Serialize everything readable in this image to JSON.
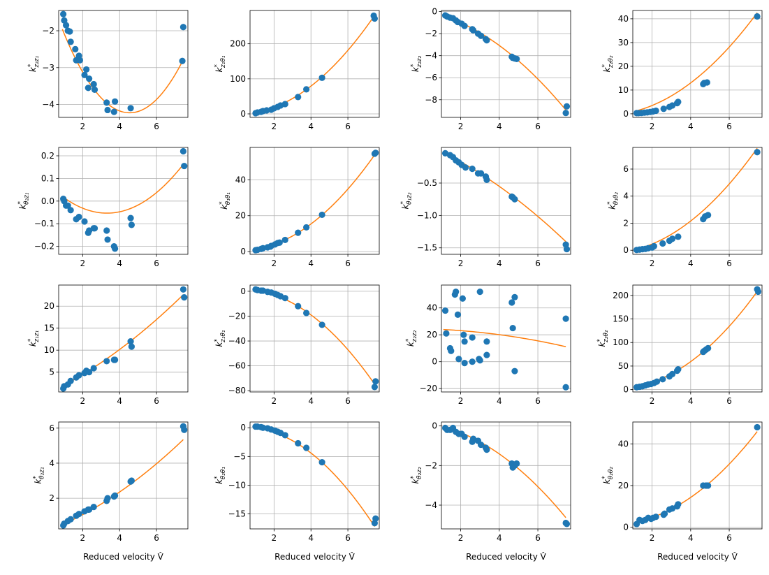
{
  "colors": {
    "points": "#1f77b4",
    "fit_line": "#ff7f0e",
    "grid": "#b0b0b0",
    "axes": "#000000"
  },
  "chart_data": [
    {
      "type": "scatter",
      "ylabel": {
        "base": "k",
        "sup": "*",
        "sub": "z₂z₁"
      },
      "xlabel": "",
      "xlim": [
        0.7,
        7.7
      ],
      "ylim": [
        -4.35,
        -1.45
      ],
      "xticks": [
        2,
        4,
        6
      ],
      "yticks": [
        -4,
        -3,
        -2
      ],
      "ytick_labels": [
        "−4",
        "−3",
        "−2"
      ],
      "grid": true,
      "x": [
        0.95,
        1.0,
        1.1,
        1.2,
        1.3,
        1.35,
        1.6,
        1.65,
        1.8,
        1.85,
        2.1,
        2.2,
        2.3,
        2.35,
        2.6,
        2.65,
        3.3,
        3.35,
        3.7,
        3.75,
        4.6,
        7.4,
        7.45
      ],
      "y": [
        -1.55,
        -1.72,
        -1.85,
        -2.0,
        -2.02,
        -2.3,
        -2.5,
        -2.8,
        -2.68,
        -2.8,
        -3.2,
        -3.05,
        -3.55,
        -3.3,
        -3.45,
        -3.6,
        -3.95,
        -4.15,
        -4.2,
        -3.92,
        -4.1,
        -2.82,
        -1.9
      ],
      "fit": {
        "coeffs": [
          0.1707,
          -1.5516,
          -0.6999
        ],
        "xrange": [
          0.9,
          7.45
        ]
      }
    },
    {
      "type": "scatter",
      "ylabel": {
        "base": "k",
        "sup": "*",
        "sub": "z₁θ₁"
      },
      "xlabel": "",
      "xlim": [
        0.7,
        7.7
      ],
      "ylim": [
        -10,
        295
      ],
      "xticks": [
        2,
        4,
        6
      ],
      "yticks": [
        0,
        100,
        200
      ],
      "ytick_labels": [
        "0",
        "100",
        "200"
      ],
      "grid": true,
      "x": [
        1.0,
        1.1,
        1.3,
        1.4,
        1.6,
        1.85,
        2.0,
        2.2,
        2.35,
        2.6,
        3.3,
        3.75,
        4.6,
        7.4,
        7.45
      ],
      "y": [
        2,
        4,
        6,
        8,
        10,
        12,
        16,
        20,
        24,
        28,
        48,
        70,
        103,
        280,
        272
      ],
      "fit": {
        "coeffs": [
          5.2,
          -1,
          0
        ],
        "xrange": [
          0.9,
          7.45
        ]
      }
    },
    {
      "type": "scatter",
      "ylabel": {
        "base": "k",
        "sup": "*",
        "sub": "z₂z₂"
      },
      "xlabel": "",
      "xlim": [
        1.0,
        7.7
      ],
      "ylim": [
        -9.6,
        0.1
      ],
      "xticks": [
        2,
        4,
        6
      ],
      "yticks": [
        0,
        -2,
        -4,
        -6,
        -8
      ],
      "ytick_labels": [
        "0",
        "−2",
        "−4",
        "−6",
        "−8"
      ],
      "grid": true,
      "x": [
        1.2,
        1.3,
        1.45,
        1.6,
        1.75,
        1.85,
        2.05,
        2.2,
        2.6,
        2.65,
        2.9,
        3.05,
        3.3,
        3.35,
        4.65,
        4.7,
        4.8,
        4.9,
        7.45,
        7.5
      ],
      "y": [
        -0.35,
        -0.45,
        -0.55,
        -0.6,
        -0.8,
        -0.95,
        -1.1,
        -1.3,
        -1.6,
        -1.7,
        -2.0,
        -2.2,
        -2.5,
        -2.6,
        -4.1,
        -4.2,
        -4.25,
        -4.3,
        -9.2,
        -8.6
      ],
      "fit": {
        "coeffs": [
          -0.1212,
          -0.3091,
          0.1
        ],
        "xrange": [
          1.1,
          7.45
        ]
      }
    },
    {
      "type": "scatter",
      "ylabel": {
        "base": "k",
        "sup": "*",
        "sub": "z₂θ₂"
      },
      "xlabel": "",
      "xlim": [
        1.0,
        7.7
      ],
      "ylim": [
        -1.5,
        43.5
      ],
      "xticks": [
        2,
        4,
        6
      ],
      "yticks": [
        0,
        10,
        20,
        30,
        40
      ],
      "ytick_labels": [
        "0",
        "10",
        "20",
        "30",
        "40"
      ],
      "grid": true,
      "x": [
        1.2,
        1.3,
        1.45,
        1.6,
        1.75,
        1.9,
        2.05,
        2.2,
        2.6,
        2.9,
        3.05,
        3.3,
        3.35,
        4.65,
        4.7,
        4.85,
        7.45
      ],
      "y": [
        0.3,
        0.3,
        0.35,
        0.5,
        0.6,
        0.8,
        1.0,
        1.3,
        2.1,
        2.9,
        3.5,
        4.5,
        5.0,
        12.5,
        13.0,
        13.2,
        41
      ],
      "fit": {
        "coeffs": [
          0.7,
          0.55,
          -0.4
        ],
        "xrange": [
          1.1,
          7.45
        ]
      }
    },
    {
      "type": "scatter",
      "ylabel": {
        "base": "k",
        "sup": "*",
        "sub": "θ₂z₁"
      },
      "xlabel": "",
      "xlim": [
        0.7,
        7.7
      ],
      "ylim": [
        -0.235,
        0.237
      ],
      "xticks": [
        2,
        4,
        6
      ],
      "yticks": [
        -0.2,
        -0.1,
        0.0,
        0.1,
        0.2
      ],
      "ytick_labels": [
        "−0.2",
        "−0.1",
        "0.0",
        "0.1",
        "0.2"
      ],
      "grid": true,
      "x": [
        0.95,
        1.0,
        1.1,
        1.2,
        1.35,
        1.65,
        1.8,
        2.1,
        2.3,
        2.35,
        2.6,
        2.65,
        3.3,
        3.35,
        3.7,
        3.75,
        4.6,
        4.65,
        7.45,
        7.5
      ],
      "y": [
        0.01,
        0.0,
        -0.02,
        -0.02,
        -0.04,
        -0.08,
        -0.07,
        -0.09,
        -0.14,
        -0.13,
        -0.12,
        -0.12,
        -0.13,
        -0.17,
        -0.2,
        -0.21,
        -0.075,
        -0.105,
        0.22,
        0.155
      ],
      "fit": {
        "coeffs": [
          0.0126,
          -0.0836,
          0.0855
        ],
        "xrange": [
          0.9,
          7.45
        ]
      }
    },
    {
      "type": "scatter",
      "ylabel": {
        "base": "k",
        "sup": "*",
        "sub": "θ₁θ₁"
      },
      "xlabel": "",
      "xlim": [
        0.7,
        7.7
      ],
      "ylim": [
        -1.5,
        58
      ],
      "xticks": [
        2,
        4,
        6
      ],
      "yticks": [
        0,
        20,
        40
      ],
      "ytick_labels": [
        "0",
        "20",
        "40"
      ],
      "grid": true,
      "x": [
        1.0,
        1.1,
        1.3,
        1.4,
        1.65,
        1.8,
        1.85,
        2.05,
        2.2,
        2.3,
        2.6,
        3.3,
        3.75,
        4.6,
        7.45,
        7.5
      ],
      "y": [
        0.8,
        1.0,
        1.5,
        1.9,
        2.4,
        2.8,
        3.2,
        4.0,
        4.8,
        5.0,
        6.5,
        10.5,
        13.5,
        20.5,
        54.5,
        55
      ],
      "fit": {
        "coeffs": [
          1.0,
          -0.3,
          0.6
        ],
        "xrange": [
          0.9,
          7.45
        ]
      }
    },
    {
      "type": "scatter",
      "ylabel": {
        "base": "k",
        "sup": "*",
        "sub": "θ₁z₂"
      },
      "xlabel": "",
      "xlim": [
        1.0,
        7.7
      ],
      "ylim": [
        -1.6,
        0.05
      ],
      "xticks": [
        2,
        4,
        6
      ],
      "yticks": [
        -0.5,
        -1.0,
        -1.5
      ],
      "ytick_labels": [
        "−0.5",
        "−1.0",
        "−1.5"
      ],
      "grid": true,
      "x": [
        1.2,
        1.45,
        1.6,
        1.75,
        1.9,
        2.05,
        2.25,
        2.6,
        2.9,
        3.05,
        3.3,
        3.35,
        4.65,
        4.7,
        4.8,
        7.45,
        7.5
      ],
      "y": [
        -0.04,
        -0.07,
        -0.1,
        -0.15,
        -0.18,
        -0.22,
        -0.26,
        -0.28,
        -0.35,
        -0.35,
        -0.4,
        -0.45,
        -0.71,
        -0.72,
        -0.75,
        -1.45,
        -1.52
      ],
      "fit": {
        "coeffs": [
          -0.0105,
          -0.1269,
          0.1244
        ],
        "xrange": [
          1.1,
          7.45
        ]
      }
    },
    {
      "type": "scatter",
      "ylabel": {
        "base": "k",
        "sup": "*",
        "sub": "θ₁θ₂"
      },
      "xlabel": "",
      "xlim": [
        1.0,
        7.7
      ],
      "ylim": [
        -0.3,
        7.6
      ],
      "xticks": [
        2,
        4,
        6
      ],
      "yticks": [
        0,
        2,
        4,
        6
      ],
      "ytick_labels": [
        "0",
        "2",
        "4",
        "6"
      ],
      "grid": true,
      "x": [
        1.2,
        1.35,
        1.5,
        1.65,
        1.8,
        2.0,
        2.1,
        2.55,
        2.9,
        3.05,
        3.35,
        4.65,
        4.75,
        4.9,
        7.45
      ],
      "y": [
        0.02,
        0.05,
        0.08,
        0.1,
        0.15,
        0.2,
        0.3,
        0.5,
        0.7,
        0.85,
        1.0,
        2.3,
        2.5,
        2.6,
        7.25
      ],
      "fit": {
        "coeffs": [
          0.13,
          0.07,
          -0.2
        ],
        "xrange": [
          1.1,
          7.45
        ]
      }
    },
    {
      "type": "scatter",
      "ylabel": {
        "base": "k",
        "sup": "*",
        "sub": "z₁z₁"
      },
      "xlabel": "",
      "xlim": [
        0.7,
        7.7
      ],
      "ylim": [
        0.5,
        24.8
      ],
      "xticks": [
        2,
        4,
        6
      ],
      "yticks": [
        5,
        10,
        15,
        20
      ],
      "ytick_labels": [
        "5",
        "10",
        "15",
        "20"
      ],
      "grid": true,
      "x": [
        0.95,
        1.0,
        1.2,
        1.35,
        1.65,
        1.8,
        2.1,
        2.2,
        2.35,
        2.6,
        3.3,
        3.7,
        3.75,
        4.6,
        4.65,
        7.45,
        7.5
      ],
      "y": [
        1.3,
        1.8,
        2.2,
        3.0,
        3.8,
        4.3,
        4.8,
        5.3,
        5.0,
        5.9,
        7.5,
        7.8,
        7.8,
        12.0,
        10.8,
        23.8,
        22
      ],
      "fit": {
        "coeffs": [
          0.1407,
          2.0,
          -0.1
        ],
        "xrange": [
          0.9,
          7.45
        ]
      }
    },
    {
      "type": "scatter",
      "ylabel": {
        "base": "k",
        "sup": "*",
        "sub": "z₁θ₁"
      },
      "xlabel": "",
      "xlim": [
        0.7,
        7.7
      ],
      "ylim": [
        -81,
        5
      ],
      "xticks": [
        2,
        4,
        6
      ],
      "yticks": [
        0,
        -20,
        -40,
        -60,
        -80
      ],
      "ytick_labels": [
        "0",
        "−20",
        "−40",
        "−60",
        "−80"
      ],
      "grid": true,
      "x": [
        1.0,
        1.1,
        1.3,
        1.4,
        1.65,
        1.85,
        2.05,
        2.2,
        2.35,
        2.6,
        3.3,
        3.75,
        4.6,
        7.45,
        7.5
      ],
      "y": [
        1.5,
        1.0,
        0.5,
        0.5,
        -0.5,
        -1.0,
        -2.0,
        -3.0,
        -4.0,
        -5.5,
        -12,
        -17.5,
        -27,
        -77,
        -72.5
      ],
      "fit": {
        "coeffs": [
          -1.5,
          1.0,
          1.0
        ],
        "xrange": [
          0.9,
          7.45
        ]
      }
    },
    {
      "type": "scatter",
      "ylabel": {
        "base": "k",
        "sup": "*",
        "sub": "z₂z₂"
      },
      "xlabel": "",
      "xlim": [
        1.0,
        7.7
      ],
      "ylim": [
        -22.5,
        57
      ],
      "xticks": [
        2,
        4,
        6
      ],
      "yticks": [
        -20,
        0,
        20,
        40
      ],
      "ytick_labels": [
        "−20",
        "0",
        "20",
        "40"
      ],
      "grid": true,
      "x": [
        1.2,
        1.25,
        1.45,
        1.5,
        1.7,
        1.75,
        1.85,
        1.9,
        2.1,
        2.15,
        2.2,
        2.2,
        2.6,
        2.6,
        2.95,
        3.0,
        3.0,
        3.35,
        3.35,
        4.65,
        4.7,
        4.8,
        4.8,
        7.45,
        7.45
      ],
      "y": [
        38,
        21,
        10,
        8,
        50,
        52,
        35,
        2,
        47,
        20,
        15,
        -1,
        18,
        0,
        2,
        52,
        1,
        15,
        5,
        44,
        25,
        48,
        -7,
        32,
        -19
      ],
      "fit": {
        "coeffs": [
          -0.2,
          -0.3,
          24.5
        ],
        "xrange": [
          1.1,
          7.45
        ]
      }
    },
    {
      "type": "scatter",
      "ylabel": {
        "base": "k",
        "sup": "*",
        "sub": "z₂θ₂"
      },
      "xlabel": "",
      "xlim": [
        1.0,
        7.7
      ],
      "ylim": [
        -5,
        222
      ],
      "xticks": [
        2,
        4,
        6
      ],
      "yticks": [
        0,
        50,
        100,
        150,
        200
      ],
      "ytick_labels": [
        "0",
        "50",
        "100",
        "150",
        "200"
      ],
      "grid": true,
      "x": [
        1.2,
        1.35,
        1.5,
        1.65,
        1.8,
        1.95,
        2.1,
        2.25,
        2.55,
        2.9,
        3.05,
        3.3,
        3.35,
        4.65,
        4.7,
        4.8,
        4.9,
        7.45,
        7.5
      ],
      "y": [
        5,
        6,
        7,
        9,
        11,
        12,
        14,
        17,
        22,
        28,
        33,
        40,
        43,
        80,
        82,
        85,
        88,
        213,
        208
      ],
      "fit": {
        "coeffs": [
          3.9,
          -1.5,
          3.0
        ],
        "xrange": [
          1.1,
          7.45
        ]
      }
    },
    {
      "type": "scatter",
      "ylabel": {
        "base": "k",
        "sup": "*",
        "sub": "θ₂z₁"
      },
      "xlabel": "Reduced velocity V̂",
      "xlim": [
        0.7,
        7.7
      ],
      "ylim": [
        0.25,
        6.35
      ],
      "xticks": [
        2,
        4,
        6
      ],
      "yticks": [
        2,
        4,
        6
      ],
      "ytick_labels": [
        "2",
        "4",
        "6"
      ],
      "grid": true,
      "x": [
        0.95,
        1.0,
        1.2,
        1.35,
        1.65,
        1.8,
        2.1,
        2.3,
        2.35,
        2.6,
        3.3,
        3.35,
        3.7,
        3.75,
        4.6,
        4.65,
        7.45,
        7.5
      ],
      "y": [
        0.45,
        0.55,
        0.7,
        0.8,
        1.0,
        1.1,
        1.25,
        1.35,
        1.35,
        1.5,
        1.85,
        2.0,
        2.1,
        2.15,
        2.95,
        3.0,
        6.1,
        5.9
      ],
      "fit": {
        "coeffs": [
          0.0408,
          0.4,
          0.1
        ],
        "xrange": [
          0.9,
          7.45
        ]
      }
    },
    {
      "type": "scatter",
      "ylabel": {
        "base": "k",
        "sup": "*",
        "sub": "θ₂θ₁"
      },
      "xlabel": "Reduced velocity V̂",
      "xlim": [
        0.7,
        7.7
      ],
      "ylim": [
        -17.6,
        1.0
      ],
      "xticks": [
        2,
        4,
        6
      ],
      "yticks": [
        0,
        -5,
        -10,
        -15
      ],
      "ytick_labels": [
        "0",
        "−5",
        "−10",
        "−15"
      ],
      "grid": true,
      "x": [
        1.0,
        1.1,
        1.3,
        1.4,
        1.65,
        1.85,
        2.05,
        2.2,
        2.35,
        2.6,
        3.3,
        3.75,
        4.6,
        7.45,
        7.5
      ],
      "y": [
        0.2,
        0.2,
        0.1,
        0.0,
        -0.1,
        -0.3,
        -0.5,
        -0.7,
        -0.9,
        -1.3,
        -2.7,
        -3.5,
        -6.0,
        -16.6,
        -15.8
      ],
      "fit": {
        "coeffs": [
          -0.35,
          0.3,
          0.0
        ],
        "xrange": [
          0.9,
          7.45
        ]
      }
    },
    {
      "type": "scatter",
      "ylabel": {
        "base": "k",
        "sup": "*",
        "sub": "θ₂z₂"
      },
      "xlabel": "Reduced velocity V̂",
      "xlim": [
        1.0,
        7.7
      ],
      "ylim": [
        -5.2,
        0.2
      ],
      "xticks": [
        2,
        4,
        6
      ],
      "yticks": [
        0,
        -2,
        -4
      ],
      "ytick_labels": [
        "0",
        "−2",
        "−4"
      ],
      "grid": true,
      "x": [
        1.2,
        1.3,
        1.45,
        1.6,
        1.75,
        1.9,
        2.05,
        2.2,
        2.6,
        2.65,
        2.9,
        3.05,
        3.3,
        3.35,
        4.65,
        4.7,
        4.8,
        4.9,
        7.45,
        7.5
      ],
      "y": [
        -0.1,
        -0.2,
        -0.2,
        -0.1,
        -0.3,
        -0.4,
        -0.4,
        -0.55,
        -0.8,
        -0.65,
        -0.75,
        -0.95,
        -1.1,
        -1.2,
        -1.9,
        -2.1,
        -2.0,
        -1.9,
        -4.9,
        -4.95
      ],
      "fit": {
        "coeffs": [
          -0.0727,
          -0.1,
          0.15
        ],
        "xrange": [
          1.1,
          7.45
        ]
      }
    },
    {
      "type": "scatter",
      "ylabel": {
        "base": "k",
        "sup": "*",
        "sub": "θ₂θ₂"
      },
      "xlabel": "Reduced velocity V̂",
      "xlim": [
        1.0,
        7.7
      ],
      "ylim": [
        -0.8,
        50.5
      ],
      "xticks": [
        2,
        4,
        6
      ],
      "yticks": [
        0,
        20,
        40
      ],
      "ytick_labels": [
        "0",
        "20",
        "40"
      ],
      "grid": true,
      "x": [
        1.2,
        1.35,
        1.5,
        1.65,
        1.8,
        1.95,
        2.05,
        2.2,
        2.6,
        2.65,
        2.9,
        3.05,
        3.3,
        3.35,
        4.65,
        4.8,
        4.9,
        7.45
      ],
      "y": [
        1.5,
        3.5,
        3.0,
        3.5,
        4.5,
        4.0,
        4.5,
        5.0,
        6.0,
        6.5,
        8.5,
        9.0,
        10.0,
        11.0,
        20,
        20,
        20,
        48
      ],
      "fit": {
        "coeffs": [
          0.8,
          0.0,
          1.5
        ],
        "xrange": [
          1.1,
          7.45
        ]
      }
    }
  ]
}
